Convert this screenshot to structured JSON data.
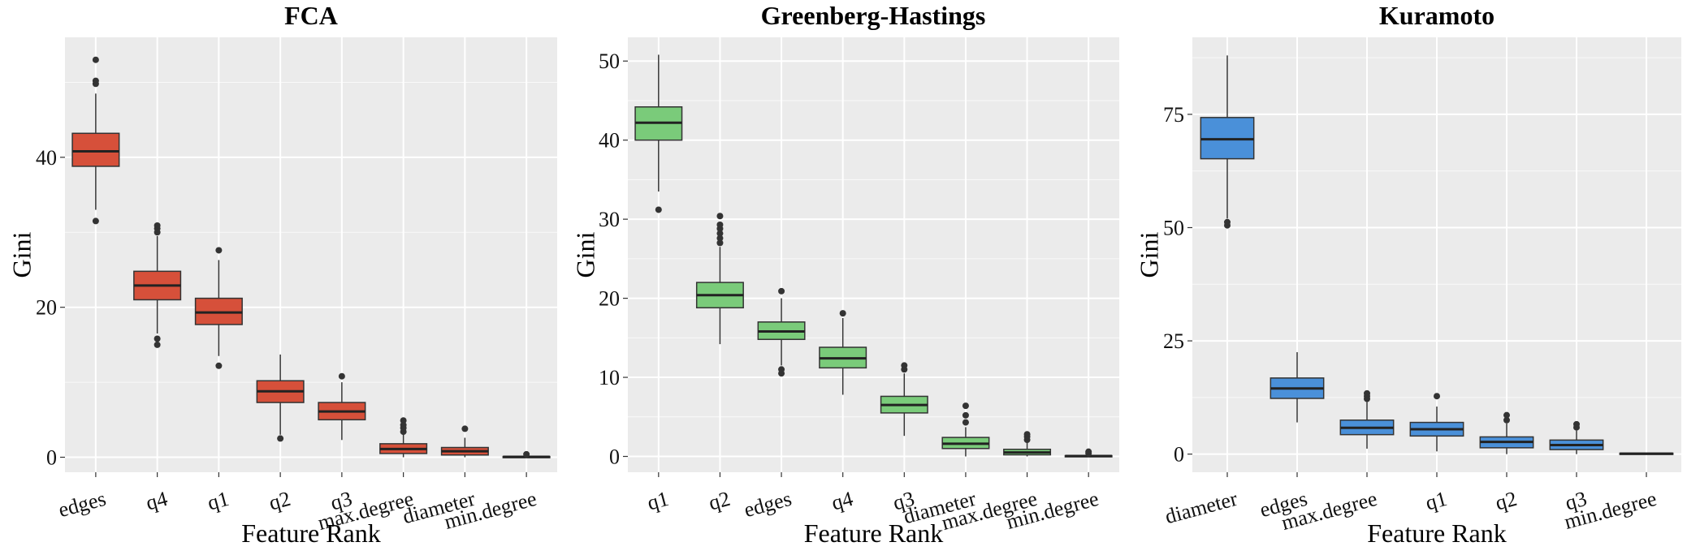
{
  "chart_data": [
    {
      "type": "boxplot",
      "title": "FCA",
      "xlabel": "Feature Rank",
      "ylabel": "Gini",
      "color": "#d6503a",
      "ylim": [
        -2,
        56
      ],
      "yticks": [
        0,
        20,
        40
      ],
      "categories": [
        "edges",
        "q4",
        "q1",
        "q2",
        "q3",
        "max.degree",
        "diameter",
        "min.degree"
      ],
      "boxes": [
        {
          "min": 33,
          "q1": 38.8,
          "median": 40.8,
          "q3": 43.2,
          "max": 48.5,
          "outliers": [
            31.5,
            49.8,
            50.2,
            53
          ]
        },
        {
          "min": 16.5,
          "q1": 21,
          "median": 22.9,
          "q3": 24.8,
          "max": 29.5,
          "outliers": [
            15,
            15.8,
            30,
            30.5,
            30.9
          ]
        },
        {
          "min": 13.5,
          "q1": 17.7,
          "median": 19.3,
          "q3": 21.2,
          "max": 26.3,
          "outliers": [
            12.2,
            27.6
          ]
        },
        {
          "min": 3,
          "q1": 7.3,
          "median": 8.8,
          "q3": 10.2,
          "max": 13.7,
          "outliers": [
            2.5
          ]
        },
        {
          "min": 2.3,
          "q1": 5,
          "median": 6.1,
          "q3": 7.3,
          "max": 10,
          "outliers": [
            10.8
          ]
        },
        {
          "min": 0,
          "q1": 0.5,
          "median": 1.1,
          "q3": 1.8,
          "max": 3,
          "outliers": [
            3.4,
            3.9,
            4.3,
            4.9
          ]
        },
        {
          "min": 0,
          "q1": 0.3,
          "median": 0.8,
          "q3": 1.3,
          "max": 2.6,
          "outliers": [
            3.8
          ]
        },
        {
          "min": 0,
          "q1": 0,
          "median": 0.05,
          "q3": 0.1,
          "max": 0.2,
          "outliers": [
            0.4
          ]
        }
      ]
    },
    {
      "type": "boxplot",
      "title": "Greenberg-Hastings",
      "xlabel": "Feature Rank",
      "ylabel": "Gini",
      "color": "#7acb7a",
      "ylim": [
        -2,
        53
      ],
      "yticks": [
        0,
        10,
        20,
        30,
        40,
        50
      ],
      "categories": [
        "q1",
        "q2",
        "edges",
        "q4",
        "q3",
        "diameter",
        "max.degree",
        "min.degree"
      ],
      "boxes": [
        {
          "min": 33.5,
          "q1": 40,
          "median": 42.2,
          "q3": 44.2,
          "max": 50.8,
          "outliers": [
            31.2
          ]
        },
        {
          "min": 14.2,
          "q1": 18.8,
          "median": 20.4,
          "q3": 22,
          "max": 26.5,
          "outliers": [
            27,
            27.6,
            28.2,
            28.8,
            29.3,
            30.4
          ]
        },
        {
          "min": 11.5,
          "q1": 14.8,
          "median": 15.8,
          "q3": 17,
          "max": 20,
          "outliers": [
            10.5,
            11,
            20.9
          ]
        },
        {
          "min": 7.8,
          "q1": 11.2,
          "median": 12.4,
          "q3": 13.8,
          "max": 17.5,
          "outliers": [
            18.1
          ]
        },
        {
          "min": 2.6,
          "q1": 5.5,
          "median": 6.5,
          "q3": 7.6,
          "max": 10.5,
          "outliers": [
            11,
            11.5
          ]
        },
        {
          "min": 0,
          "q1": 1,
          "median": 1.6,
          "q3": 2.4,
          "max": 3.7,
          "outliers": [
            4.3,
            5.2,
            6.4
          ]
        },
        {
          "min": 0,
          "q1": 0.2,
          "median": 0.5,
          "q3": 0.9,
          "max": 1.8,
          "outliers": [
            2.1,
            2.5,
            2.8
          ]
        },
        {
          "min": 0,
          "q1": 0,
          "median": 0.05,
          "q3": 0.1,
          "max": 0.2,
          "outliers": [
            0.4,
            0.6
          ]
        }
      ]
    },
    {
      "type": "boxplot",
      "title": "Kuramoto",
      "xlabel": "Feature Rank",
      "ylabel": "Gini",
      "color": "#4a90d9",
      "ylim": [
        -4,
        92
      ],
      "yticks": [
        0,
        25,
        50,
        75
      ],
      "categories": [
        "diameter",
        "edges",
        "max.degree",
        "q1",
        "q2",
        "q3",
        "min.degree"
      ],
      "boxes": [
        {
          "min": 52,
          "q1": 65.2,
          "median": 69.5,
          "q3": 74.3,
          "max": 88,
          "outliers": [
            50.5,
            51.2
          ]
        },
        {
          "min": 7,
          "q1": 12.3,
          "median": 14.5,
          "q3": 16.8,
          "max": 22.5,
          "outliers": []
        },
        {
          "min": 1.2,
          "q1": 4.3,
          "median": 5.8,
          "q3": 7.5,
          "max": 11.5,
          "outliers": [
            12.2,
            12.8,
            13.4
          ]
        },
        {
          "min": 0.6,
          "q1": 4,
          "median": 5.5,
          "q3": 7,
          "max": 10.5,
          "outliers": [
            12.8
          ]
        },
        {
          "min": 0,
          "q1": 1.4,
          "median": 2.7,
          "q3": 3.8,
          "max": 6.8,
          "outliers": [
            7.5,
            8.6
          ]
        },
        {
          "min": 0,
          "q1": 1,
          "median": 2,
          "q3": 3.1,
          "max": 5.2,
          "outliers": [
            5.9,
            6.6
          ]
        },
        {
          "min": 0,
          "q1": 0,
          "median": 0.1,
          "q3": 0.2,
          "max": 0.3,
          "outliers": []
        }
      ]
    }
  ]
}
